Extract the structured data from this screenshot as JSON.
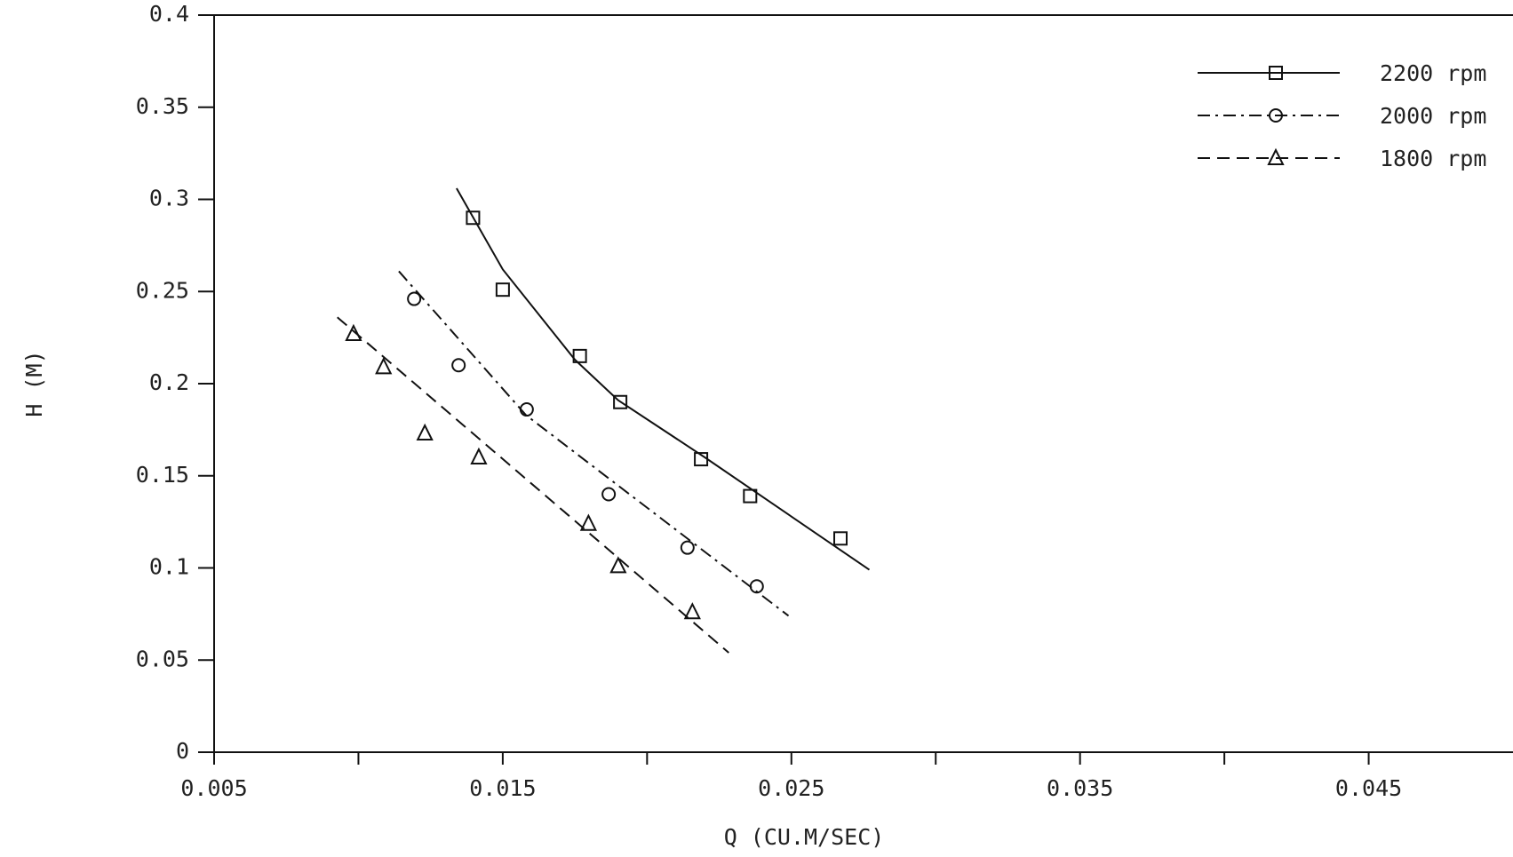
{
  "chart_data": {
    "type": "scatter",
    "x_label": "Q (CU.M/SEC)",
    "y_label": "H (M)",
    "xlim": [
      0.005,
      0.05
    ],
    "xticks": [
      0.005,
      0.015,
      0.025,
      0.035,
      0.045
    ],
    "xminor_ticks": [
      0.01,
      0.02,
      0.03,
      0.04
    ],
    "ylim": [
      0,
      0.4
    ],
    "yticks": [
      0,
      0.05,
      0.1,
      0.15,
      0.2,
      0.25,
      0.3,
      0.35,
      0.4
    ],
    "legend": "upper right",
    "series": [
      {
        "name": "2200 rpm",
        "color": "#111111",
        "marker": "square",
        "line_style": "solid",
        "x": [
          0.01397,
          0.015,
          0.01767,
          0.01907,
          0.02187,
          0.02357,
          0.0267
        ],
        "values": [
          0.29,
          0.251,
          0.215,
          0.19,
          0.159,
          0.139,
          0.116
        ],
        "fit_x": [
          0.0134,
          0.015,
          0.0175,
          0.019,
          0.022,
          0.0277
        ],
        "fit_y": [
          0.306,
          0.262,
          0.213,
          0.191,
          0.16,
          0.099
        ]
      },
      {
        "name": "2000 rpm",
        "color": "#111111",
        "marker": "circle",
        "line_style": "dashdot",
        "x": [
          0.01193,
          0.01347,
          0.01583,
          0.01867,
          0.0214,
          0.0238
        ],
        "values": [
          0.246,
          0.21,
          0.186,
          0.14,
          0.111,
          0.09
        ],
        "fit_x": [
          0.0114,
          0.0158,
          0.0249
        ],
        "fit_y": [
          0.261,
          0.183,
          0.074
        ]
      },
      {
        "name": "1800 rpm",
        "color": "#111111",
        "marker": "triangle",
        "line_style": "dashed",
        "x": [
          0.00983,
          0.01087,
          0.0123,
          0.01417,
          0.01797,
          0.019,
          0.02157
        ],
        "values": [
          0.227,
          0.209,
          0.173,
          0.16,
          0.124,
          0.101,
          0.076
        ],
        "fit_x": [
          0.00927,
          0.02283
        ],
        "fit_y": [
          0.236,
          0.054
        ]
      }
    ]
  }
}
